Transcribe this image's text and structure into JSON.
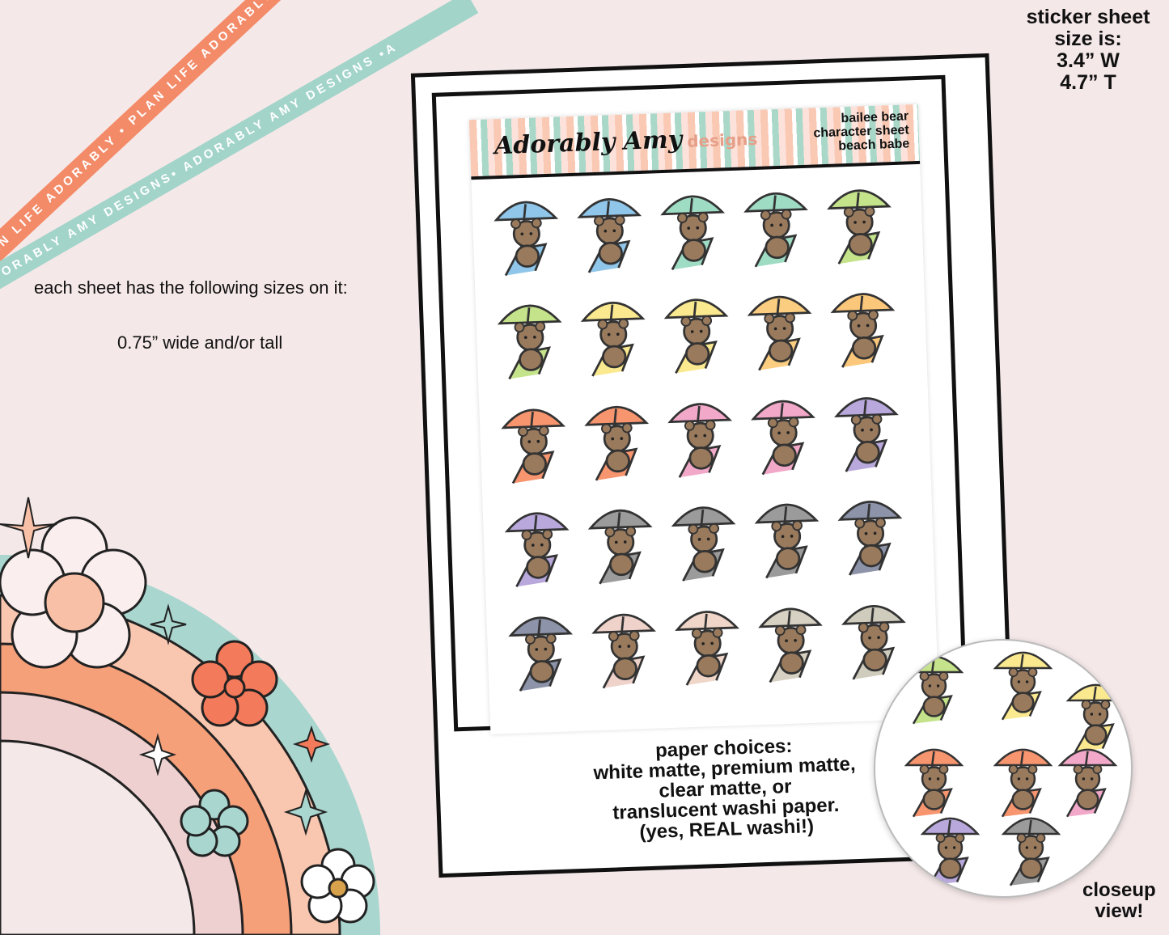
{
  "ribbons": {
    "coral_text": "PLAN LIFE ADORABLY • PLAN LIFE ADORABLY • PLAN LIFE AD",
    "mint_text": "ADORABLY AMY DESIGNS• ADORABLY AMY DESIGNS •A",
    "coral_color": "#f38a68",
    "mint_color": "#a2d4ca"
  },
  "info": {
    "sizes_heading": "each sheet has the following sizes on it:",
    "sizes_value": "0.75” wide and/or tall",
    "sheet_size_lines": [
      "sticker sheet",
      "size is:",
      "3.4” W",
      "4.7” T"
    ]
  },
  "sheet": {
    "logo_text": "Adorably Amy",
    "logo_suffix": "designs",
    "title_lines": [
      "bailee bear",
      "character sheet",
      "beach babe"
    ],
    "umbrella_colors": [
      "#8fc6ea",
      "#8fc6ea",
      "#9fdcc4",
      "#9fdcc4",
      "#c5e38a",
      "#c5e38a",
      "#fbe98f",
      "#fbe98f",
      "#fbcd80",
      "#fbc77a",
      "#f7956f",
      "#f7956f",
      "#f2a9c9",
      "#f2a9c9",
      "#b9a8dc",
      "#b9a8dc",
      "#9b9b9b",
      "#9b9b9b",
      "#9b9b9b",
      "#8d93a8",
      "#8d93a8",
      "#efd3cb",
      "#efd6c8",
      "#d6d1c2",
      "#cfcbbd"
    ],
    "paper_lines": [
      "paper choices:",
      "white matte, premium matte,",
      "clear matte, or",
      "translucent washi paper.",
      "(yes, REAL washi!)"
    ]
  },
  "closeup": {
    "label_lines": [
      "closeup",
      "view!"
    ],
    "umbrella_colors": [
      "#c5e38a",
      "#fbe98f",
      "#fbe98f",
      "#f7956f",
      "#f7956f",
      "#f2a9c9",
      "#b9a8dc",
      "#9b9b9b"
    ]
  }
}
